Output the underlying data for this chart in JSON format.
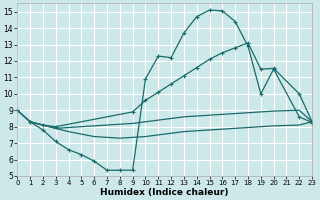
{
  "xlabel": "Humidex (Indice chaleur)",
  "bg_color": "#cde8e8",
  "grid_color": "#ffffff",
  "line_color": "#1a6b6b",
  "xlim": [
    0,
    23
  ],
  "ylim": [
    5,
    15.5
  ],
  "xticks": [
    0,
    1,
    2,
    3,
    4,
    5,
    6,
    7,
    8,
    9,
    10,
    11,
    12,
    13,
    14,
    15,
    16,
    17,
    18,
    19,
    20,
    21,
    22,
    23
  ],
  "yticks": [
    5,
    6,
    7,
    8,
    9,
    10,
    11,
    12,
    13,
    14,
    15
  ],
  "line1_x": [
    0,
    1,
    2,
    3,
    4,
    5,
    6,
    7,
    8,
    9,
    10,
    11,
    12,
    13,
    14,
    15,
    16,
    17,
    18,
    19,
    20,
    22,
    23
  ],
  "line1_y": [
    9.0,
    8.3,
    7.8,
    7.1,
    6.6,
    6.3,
    5.9,
    5.35,
    5.35,
    5.35,
    10.9,
    12.3,
    12.2,
    13.7,
    14.7,
    15.1,
    15.05,
    14.4,
    12.9,
    10.0,
    11.5,
    8.6,
    8.25
  ],
  "line2_x": [
    0,
    1,
    2,
    3,
    9,
    10,
    11,
    12,
    13,
    14,
    15,
    16,
    17,
    18,
    19,
    20,
    22,
    23
  ],
  "line2_y": [
    9.0,
    8.3,
    8.1,
    8.0,
    8.9,
    9.6,
    10.1,
    10.6,
    11.1,
    11.6,
    12.1,
    12.5,
    12.8,
    13.1,
    11.5,
    11.55,
    10.0,
    8.3
  ],
  "line3_x": [
    0,
    1,
    2,
    3,
    9,
    10,
    11,
    12,
    13,
    14,
    15,
    16,
    17,
    18,
    19,
    20,
    22,
    23
  ],
  "line3_y": [
    9.0,
    8.3,
    8.1,
    7.9,
    8.2,
    8.3,
    8.4,
    8.5,
    8.6,
    8.65,
    8.7,
    8.75,
    8.8,
    8.85,
    8.9,
    8.95,
    9.0,
    8.3
  ],
  "line4_x": [
    1,
    2,
    3,
    4,
    5,
    6,
    7,
    8,
    9,
    10,
    11,
    12,
    13,
    14,
    15,
    16,
    17,
    18,
    19,
    20,
    22,
    23
  ],
  "line4_y": [
    8.3,
    8.1,
    7.9,
    7.7,
    7.55,
    7.4,
    7.35,
    7.3,
    7.35,
    7.4,
    7.5,
    7.6,
    7.7,
    7.75,
    7.8,
    7.85,
    7.9,
    7.95,
    8.0,
    8.05,
    8.1,
    8.3
  ]
}
